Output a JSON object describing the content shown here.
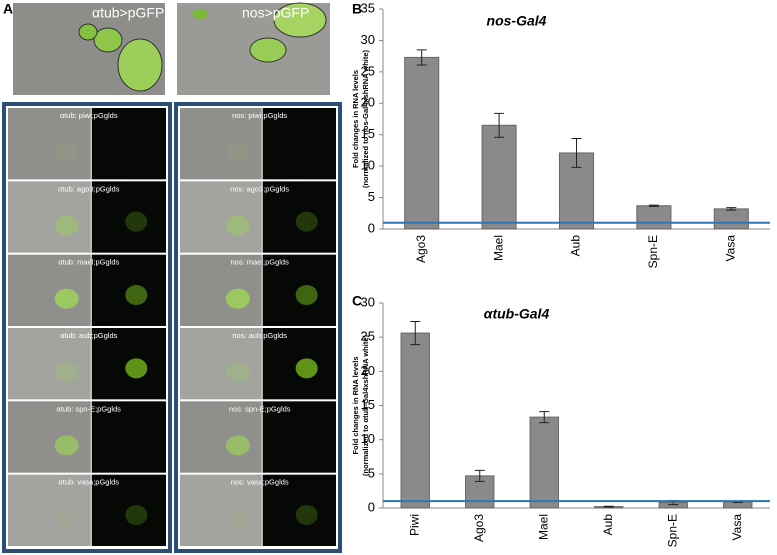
{
  "panel_labels": [
    "A",
    "B",
    "C"
  ],
  "microscopy": {
    "top": [
      "αtub>pGFP",
      "nos>pGFP"
    ],
    "left_rows": [
      "αtub: piwi;pGglds",
      "αtub: ago3;pGglds",
      "αtub: mael;pGglds",
      "αtub: aub;pGglds",
      "αtub: spn-E;pGglds",
      "αtub: vasa;pGglds"
    ],
    "right_rows": [
      "nos: piwi;pGglds",
      "nos: ago3;pGglds",
      "nos: mael;pGglds",
      "nos: aub;pGglds",
      "nos: spn-E;pGglds",
      "nos: vasa;pGglds"
    ]
  },
  "chart_data": [
    {
      "type": "bar",
      "title": "nos-Gal4",
      "y_label": [
        "Fold changes in RNA levels",
        "(normalized to nos-Gal4xshRNA white)"
      ],
      "categories": [
        "Ago3",
        "Mael",
        "Aub",
        "Spn-E",
        "Vasa"
      ],
      "values": [
        27.3,
        16.5,
        12.1,
        3.7,
        3.2
      ],
      "errors": [
        1.2,
        1.9,
        2.3,
        0.1,
        0.2
      ],
      "color": "#8a8a8a",
      "reference_line": 1,
      "reference_color": "#2e75b6",
      "ylim": [
        0,
        35
      ],
      "yticks": [
        0,
        5,
        10,
        15,
        20,
        25,
        30,
        35
      ]
    },
    {
      "type": "bar",
      "title": "αtub-Gal4",
      "y_label": [
        "Fold changes in RNA levels",
        "(normalized to αtub-Gal4xshRNA white)"
      ],
      "categories": [
        "Piwi",
        "Ago3",
        "Mael",
        "Aub",
        "Spn-E",
        "Vasa"
      ],
      "values": [
        25.6,
        4.7,
        13.3,
        0.2,
        0.8,
        0.9
      ],
      "errors": [
        1.7,
        0.8,
        0.8,
        0.05,
        0.3,
        0.1
      ],
      "color": "#8a8a8a",
      "reference_line": 1,
      "reference_color": "#2e75b6",
      "ylim": [
        0,
        30
      ],
      "yticks": [
        0,
        5,
        10,
        15,
        20,
        25,
        30
      ]
    }
  ]
}
